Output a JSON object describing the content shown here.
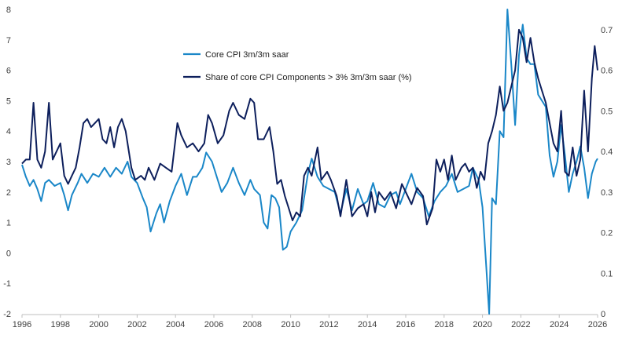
{
  "chart_data": {
    "type": "line",
    "title": "",
    "xlabel": "",
    "ylabel": "",
    "x_ticks": [
      "1996",
      "1998",
      "2000",
      "2002",
      "2004",
      "2006",
      "2008",
      "2010",
      "2012",
      "2014",
      "2016",
      "2018",
      "2020",
      "2022",
      "2024",
      "2026"
    ],
    "xlim": [
      1996,
      2026
    ],
    "ylim_left": [
      -2,
      8
    ],
    "y_ticks_left": [
      "-2",
      "-1",
      "0",
      "1",
      "2",
      "3",
      "4",
      "5",
      "6",
      "7",
      "8"
    ],
    "ylim_right": [
      0,
      0.75
    ],
    "y_ticks_right": [
      "0",
      "0.1",
      "0.2",
      "0.3",
      "0.4",
      "0.5",
      "0.6",
      "0.7"
    ],
    "legend_position": "top-center",
    "grid": false,
    "series": [
      {
        "name": "Core CPI 3m/3m saar",
        "axis": "left",
        "color": "#1a87c8",
        "points": [
          [
            1996.0,
            2.9
          ],
          [
            1996.2,
            2.5
          ],
          [
            1996.4,
            2.2
          ],
          [
            1996.6,
            2.4
          ],
          [
            1996.8,
            2.1
          ],
          [
            1997.0,
            1.7
          ],
          [
            1997.2,
            2.3
          ],
          [
            1997.4,
            2.4
          ],
          [
            1997.7,
            2.2
          ],
          [
            1998.0,
            2.3
          ],
          [
            1998.2,
            1.9
          ],
          [
            1998.4,
            1.4
          ],
          [
            1998.6,
            1.9
          ],
          [
            1998.9,
            2.3
          ],
          [
            1999.1,
            2.6
          ],
          [
            1999.4,
            2.3
          ],
          [
            1999.7,
            2.6
          ],
          [
            2000.0,
            2.5
          ],
          [
            2000.3,
            2.8
          ],
          [
            2000.6,
            2.5
          ],
          [
            2000.9,
            2.8
          ],
          [
            2001.2,
            2.6
          ],
          [
            2001.5,
            3.0
          ],
          [
            2001.7,
            2.5
          ],
          [
            2002.0,
            2.3
          ],
          [
            2002.3,
            1.8
          ],
          [
            2002.5,
            1.5
          ],
          [
            2002.7,
            0.7
          ],
          [
            2003.0,
            1.3
          ],
          [
            2003.2,
            1.6
          ],
          [
            2003.4,
            1.0
          ],
          [
            2003.7,
            1.7
          ],
          [
            2004.0,
            2.2
          ],
          [
            2004.3,
            2.6
          ],
          [
            2004.6,
            1.9
          ],
          [
            2004.9,
            2.5
          ],
          [
            2005.1,
            2.5
          ],
          [
            2005.4,
            2.8
          ],
          [
            2005.6,
            3.3
          ],
          [
            2005.9,
            3.0
          ],
          [
            2006.2,
            2.4
          ],
          [
            2006.4,
            2.0
          ],
          [
            2006.7,
            2.3
          ],
          [
            2007.0,
            2.8
          ],
          [
            2007.3,
            2.3
          ],
          [
            2007.6,
            1.9
          ],
          [
            2007.9,
            2.4
          ],
          [
            2008.1,
            2.1
          ],
          [
            2008.4,
            1.9
          ],
          [
            2008.6,
            1.0
          ],
          [
            2008.8,
            0.8
          ],
          [
            2009.0,
            1.9
          ],
          [
            2009.2,
            1.8
          ],
          [
            2009.4,
            1.5
          ],
          [
            2009.6,
            0.1
          ],
          [
            2009.8,
            0.2
          ],
          [
            2010.0,
            0.7
          ],
          [
            2010.3,
            1.0
          ],
          [
            2010.6,
            1.4
          ],
          [
            2010.9,
            2.6
          ],
          [
            2011.1,
            3.1
          ],
          [
            2011.4,
            2.5
          ],
          [
            2011.7,
            2.2
          ],
          [
            2012.0,
            2.1
          ],
          [
            2012.3,
            2.0
          ],
          [
            2012.6,
            1.3
          ],
          [
            2012.9,
            2.1
          ],
          [
            2013.2,
            1.4
          ],
          [
            2013.5,
            2.1
          ],
          [
            2013.8,
            1.6
          ],
          [
            2014.0,
            1.7
          ],
          [
            2014.3,
            2.3
          ],
          [
            2014.6,
            1.6
          ],
          [
            2014.9,
            1.5
          ],
          [
            2015.2,
            1.9
          ],
          [
            2015.5,
            2.0
          ],
          [
            2015.7,
            1.6
          ],
          [
            2016.0,
            2.1
          ],
          [
            2016.3,
            2.6
          ],
          [
            2016.6,
            2.0
          ],
          [
            2016.9,
            1.8
          ],
          [
            2017.2,
            1.2
          ],
          [
            2017.5,
            1.7
          ],
          [
            2017.8,
            2.0
          ],
          [
            2018.1,
            2.2
          ],
          [
            2018.4,
            2.6
          ],
          [
            2018.7,
            2.0
          ],
          [
            2019.0,
            2.1
          ],
          [
            2019.3,
            2.2
          ],
          [
            2019.5,
            2.8
          ],
          [
            2019.8,
            2.4
          ],
          [
            2020.0,
            1.5
          ],
          [
            2020.2,
            -0.5
          ],
          [
            2020.35,
            -2.0
          ],
          [
            2020.5,
            1.8
          ],
          [
            2020.7,
            1.6
          ],
          [
            2020.9,
            4.0
          ],
          [
            2021.1,
            3.8
          ],
          [
            2021.3,
            8.0
          ],
          [
            2021.5,
            6.2
          ],
          [
            2021.7,
            4.2
          ],
          [
            2021.9,
            6.5
          ],
          [
            2022.1,
            7.5
          ],
          [
            2022.3,
            6.4
          ],
          [
            2022.5,
            6.2
          ],
          [
            2022.7,
            6.2
          ],
          [
            2022.9,
            5.2
          ],
          [
            2023.1,
            5.0
          ],
          [
            2023.3,
            4.8
          ],
          [
            2023.5,
            3.2
          ],
          [
            2023.7,
            2.5
          ],
          [
            2023.9,
            3.0
          ],
          [
            2024.1,
            4.2
          ],
          [
            2024.3,
            3.2
          ],
          [
            2024.5,
            2.0
          ],
          [
            2024.7,
            2.6
          ],
          [
            2024.9,
            3.0
          ],
          [
            2025.1,
            3.5
          ],
          [
            2025.3,
            2.8
          ],
          [
            2025.5,
            1.8
          ],
          [
            2025.7,
            2.6
          ],
          [
            2025.9,
            3.0
          ],
          [
            2026.0,
            3.1
          ]
        ]
      },
      {
        "name": "Share of core CPI Components > 3% 3m/3m saar (%)",
        "axis": "right",
        "color": "#0d1f5c",
        "points": [
          [
            1996.0,
            0.37
          ],
          [
            1996.2,
            0.38
          ],
          [
            1996.4,
            0.38
          ],
          [
            1996.6,
            0.52
          ],
          [
            1996.8,
            0.38
          ],
          [
            1997.0,
            0.36
          ],
          [
            1997.2,
            0.4
          ],
          [
            1997.4,
            0.52
          ],
          [
            1997.6,
            0.38
          ],
          [
            1997.8,
            0.4
          ],
          [
            1998.0,
            0.42
          ],
          [
            1998.2,
            0.34
          ],
          [
            1998.4,
            0.32
          ],
          [
            1998.6,
            0.34
          ],
          [
            1998.8,
            0.36
          ],
          [
            1999.0,
            0.41
          ],
          [
            1999.2,
            0.47
          ],
          [
            1999.4,
            0.48
          ],
          [
            1999.6,
            0.46
          ],
          [
            1999.8,
            0.47
          ],
          [
            2000.0,
            0.48
          ],
          [
            2000.2,
            0.43
          ],
          [
            2000.4,
            0.42
          ],
          [
            2000.6,
            0.46
          ],
          [
            2000.8,
            0.41
          ],
          [
            2001.0,
            0.46
          ],
          [
            2001.2,
            0.48
          ],
          [
            2001.4,
            0.45
          ],
          [
            2001.7,
            0.36
          ],
          [
            2001.9,
            0.33
          ],
          [
            2002.2,
            0.34
          ],
          [
            2002.4,
            0.33
          ],
          [
            2002.6,
            0.36
          ],
          [
            2002.9,
            0.33
          ],
          [
            2003.2,
            0.37
          ],
          [
            2003.5,
            0.36
          ],
          [
            2003.8,
            0.35
          ],
          [
            2004.1,
            0.47
          ],
          [
            2004.3,
            0.44
          ],
          [
            2004.6,
            0.41
          ],
          [
            2004.9,
            0.42
          ],
          [
            2005.2,
            0.4
          ],
          [
            2005.5,
            0.42
          ],
          [
            2005.7,
            0.49
          ],
          [
            2005.9,
            0.47
          ],
          [
            2006.2,
            0.42
          ],
          [
            2006.5,
            0.44
          ],
          [
            2006.8,
            0.5
          ],
          [
            2007.0,
            0.52
          ],
          [
            2007.3,
            0.49
          ],
          [
            2007.6,
            0.48
          ],
          [
            2007.9,
            0.53
          ],
          [
            2008.1,
            0.52
          ],
          [
            2008.3,
            0.43
          ],
          [
            2008.6,
            0.43
          ],
          [
            2008.9,
            0.46
          ],
          [
            2009.1,
            0.4
          ],
          [
            2009.3,
            0.32
          ],
          [
            2009.5,
            0.33
          ],
          [
            2009.7,
            0.29
          ],
          [
            2009.9,
            0.26
          ],
          [
            2010.1,
            0.23
          ],
          [
            2010.3,
            0.25
          ],
          [
            2010.5,
            0.24
          ],
          [
            2010.7,
            0.34
          ],
          [
            2010.9,
            0.36
          ],
          [
            2011.1,
            0.34
          ],
          [
            2011.4,
            0.41
          ],
          [
            2011.6,
            0.33
          ],
          [
            2011.9,
            0.35
          ],
          [
            2012.1,
            0.33
          ],
          [
            2012.4,
            0.29
          ],
          [
            2012.6,
            0.24
          ],
          [
            2012.9,
            0.33
          ],
          [
            2013.2,
            0.24
          ],
          [
            2013.5,
            0.26
          ],
          [
            2013.8,
            0.27
          ],
          [
            2014.0,
            0.24
          ],
          [
            2014.2,
            0.3
          ],
          [
            2014.4,
            0.25
          ],
          [
            2014.6,
            0.3
          ],
          [
            2014.9,
            0.28
          ],
          [
            2015.2,
            0.3
          ],
          [
            2015.5,
            0.26
          ],
          [
            2015.8,
            0.32
          ],
          [
            2016.0,
            0.3
          ],
          [
            2016.3,
            0.27
          ],
          [
            2016.6,
            0.31
          ],
          [
            2016.9,
            0.29
          ],
          [
            2017.1,
            0.22
          ],
          [
            2017.4,
            0.26
          ],
          [
            2017.6,
            0.38
          ],
          [
            2017.8,
            0.35
          ],
          [
            2018.0,
            0.38
          ],
          [
            2018.2,
            0.33
          ],
          [
            2018.4,
            0.39
          ],
          [
            2018.6,
            0.33
          ],
          [
            2018.9,
            0.36
          ],
          [
            2019.1,
            0.37
          ],
          [
            2019.3,
            0.35
          ],
          [
            2019.5,
            0.36
          ],
          [
            2019.7,
            0.31
          ],
          [
            2019.9,
            0.35
          ],
          [
            2020.1,
            0.33
          ],
          [
            2020.3,
            0.42
          ],
          [
            2020.5,
            0.45
          ],
          [
            2020.7,
            0.49
          ],
          [
            2020.9,
            0.56
          ],
          [
            2021.1,
            0.5
          ],
          [
            2021.3,
            0.52
          ],
          [
            2021.5,
            0.56
          ],
          [
            2021.7,
            0.6
          ],
          [
            2021.9,
            0.7
          ],
          [
            2022.1,
            0.68
          ],
          [
            2022.3,
            0.62
          ],
          [
            2022.5,
            0.68
          ],
          [
            2022.7,
            0.62
          ],
          [
            2022.9,
            0.58
          ],
          [
            2023.1,
            0.55
          ],
          [
            2023.3,
            0.52
          ],
          [
            2023.5,
            0.47
          ],
          [
            2023.7,
            0.42
          ],
          [
            2023.9,
            0.4
          ],
          [
            2024.1,
            0.5
          ],
          [
            2024.3,
            0.35
          ],
          [
            2024.5,
            0.34
          ],
          [
            2024.7,
            0.41
          ],
          [
            2024.9,
            0.34
          ],
          [
            2025.1,
            0.38
          ],
          [
            2025.3,
            0.55
          ],
          [
            2025.5,
            0.4
          ],
          [
            2025.7,
            0.58
          ],
          [
            2025.85,
            0.66
          ],
          [
            2026.0,
            0.6
          ]
        ]
      }
    ]
  }
}
